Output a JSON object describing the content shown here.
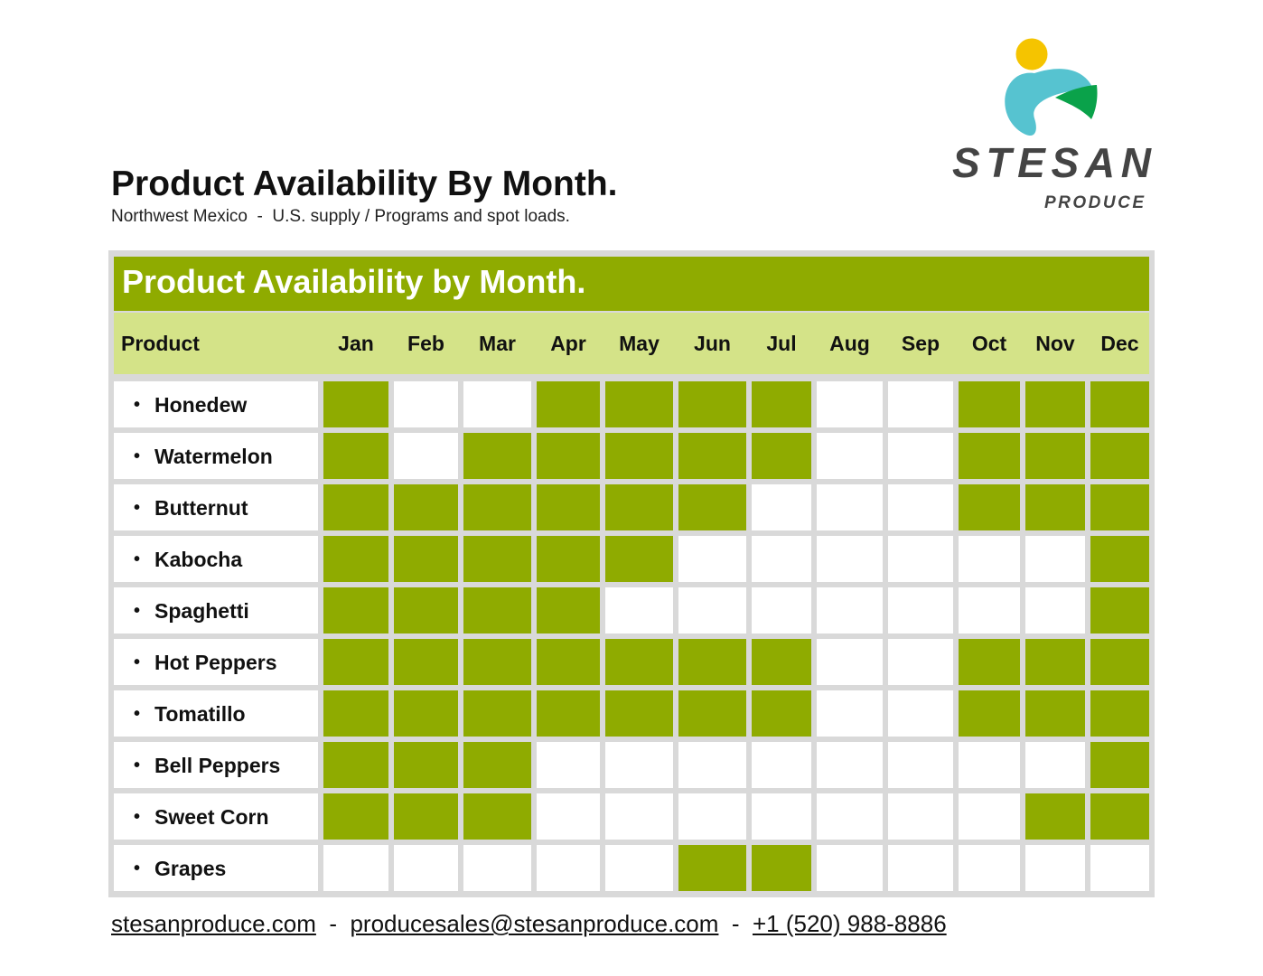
{
  "header": {
    "title": "Product Availability By Month.",
    "subtitle": "Northwest Mexico  -  U.S. supply / Programs and spot loads."
  },
  "logo": {
    "brand": "STESAN",
    "tagline": "PRODUCE",
    "colors": {
      "sun": "#f5c400",
      "wave": "#56c3d0",
      "leaf": "#0aa24a",
      "text": "#444444"
    }
  },
  "table": {
    "banner": "Product Availability by Month.",
    "product_header": "Product",
    "months": [
      "Jan",
      "Feb",
      "Mar",
      "Apr",
      "May",
      "Jun",
      "Jul",
      "Aug",
      "Sep",
      "Oct",
      "Nov",
      "Dec"
    ],
    "rows": [
      {
        "product": "Honedew",
        "available": [
          1,
          0,
          0,
          1,
          1,
          1,
          1,
          0,
          0,
          1,
          1,
          1
        ]
      },
      {
        "product": "Watermelon",
        "available": [
          1,
          0,
          1,
          1,
          1,
          1,
          1,
          0,
          0,
          1,
          1,
          1
        ]
      },
      {
        "product": "Butternut",
        "available": [
          1,
          1,
          1,
          1,
          1,
          1,
          0,
          0,
          0,
          1,
          1,
          1
        ]
      },
      {
        "product": "Kabocha",
        "available": [
          1,
          1,
          1,
          1,
          1,
          0,
          0,
          0,
          0,
          0,
          0,
          1
        ]
      },
      {
        "product": "Spaghetti",
        "available": [
          1,
          1,
          1,
          1,
          0,
          0,
          0,
          0,
          0,
          0,
          0,
          1
        ]
      },
      {
        "product": "Hot Peppers",
        "available": [
          1,
          1,
          1,
          1,
          1,
          1,
          1,
          0,
          0,
          1,
          1,
          1
        ]
      },
      {
        "product": "Tomatillo",
        "available": [
          1,
          1,
          1,
          1,
          1,
          1,
          1,
          0,
          0,
          1,
          1,
          1
        ]
      },
      {
        "product": "Bell Peppers",
        "available": [
          1,
          1,
          1,
          0,
          0,
          0,
          0,
          0,
          0,
          0,
          0,
          1
        ]
      },
      {
        "product": "Sweet Corn",
        "available": [
          1,
          1,
          1,
          0,
          0,
          0,
          0,
          0,
          0,
          0,
          1,
          1
        ]
      },
      {
        "product": "Grapes",
        "available": [
          0,
          0,
          0,
          0,
          0,
          1,
          1,
          0,
          0,
          0,
          0,
          0
        ]
      }
    ],
    "colors": {
      "available": "#8fab00",
      "header_bg": "#d4e388",
      "border": "#d9d9d9"
    }
  },
  "footer": {
    "website": "stesanproduce.com",
    "email": "producesales@stesanproduce.com",
    "phone": "+1 (520) 988-8886",
    "separator": "  -  "
  }
}
